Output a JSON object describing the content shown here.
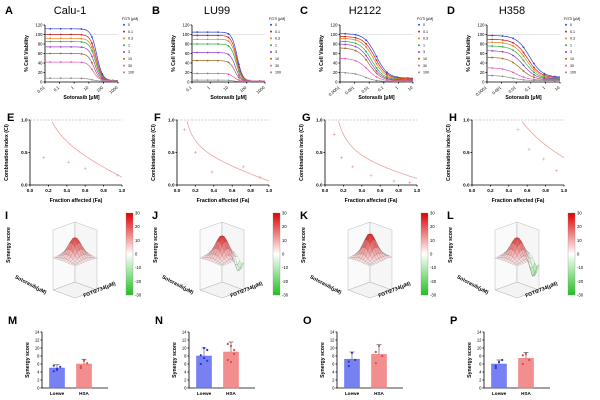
{
  "colors": {
    "series": [
      "#2b3fe0",
      "#cf1c1c",
      "#f07a1a",
      "#27b33a",
      "#9a3cc8",
      "#9c6a2c",
      "#e35bb8",
      "#8c8c8c"
    ],
    "ci_curve": "#f2a0a0",
    "ci_points": "#e8a0a0",
    "loewe_bar": "#5f6bf0",
    "hsa_bar": "#f07a7a",
    "heat_high": "#e00000",
    "heat_low": "#22c022"
  },
  "figure": {
    "letters": [
      "A",
      "B",
      "C",
      "D",
      "E",
      "F",
      "G",
      "H",
      "I",
      "J",
      "K",
      "L",
      "M",
      "N",
      "O",
      "P"
    ],
    "rowA_titles": [
      "Calu-1",
      "LU99",
      "H2122",
      "H358"
    ],
    "rowA_ylabel": "% Cell Viability",
    "rowA_xlabel": "Sotorasib [μM]",
    "legend_title": "FGTI [μM]",
    "legend_items": [
      "0",
      "0.1",
      "0.3",
      "1",
      "3",
      "10",
      "30",
      "100"
    ],
    "rowE_ylabel": "Combination index (CI)",
    "rowE_xlabel": "Fraction affected (Fa)",
    "rowI_zlabel": "Synergy score",
    "rowI_ylabel": "Sotorasib(μM)",
    "rowI_xlabel": "FGTI2734(μM)",
    "colorbar_ticks": [
      "30",
      "20",
      "10",
      "0",
      "-10",
      "-20",
      "-30"
    ],
    "rowM_ylabel": "Synergy score",
    "rowM_categories": [
      "Loewe",
      "HSA"
    ]
  },
  "chart_data": [
    {
      "panel": "A",
      "type": "line",
      "title": "Calu-1",
      "xscale": "log",
      "xlabel": "Sotorasib [μM]",
      "ylabel": "% Cell Viability",
      "xlim": [
        0.01,
        1000
      ],
      "ylim": [
        0,
        120
      ],
      "x_ticks": [
        "0.01",
        "0.1",
        "1",
        "10",
        "100",
        "1000"
      ],
      "y_ticks": [
        "0",
        "20",
        "40",
        "60",
        "80",
        "100",
        "120"
      ],
      "legend_title": "FGTI [μM]",
      "series": [
        {
          "name": "0",
          "top": 112,
          "ic50": 35,
          "hill": 2.2,
          "bottom": 3
        },
        {
          "name": "0.1",
          "top": 100,
          "ic50": 32,
          "hill": 2.2,
          "bottom": 3
        },
        {
          "name": "0.3",
          "top": 92,
          "ic50": 30,
          "hill": 2.2,
          "bottom": 3
        },
        {
          "name": "1",
          "top": 85,
          "ic50": 28,
          "hill": 2.2,
          "bottom": 3
        },
        {
          "name": "3",
          "top": 74,
          "ic50": 25,
          "hill": 2.2,
          "bottom": 3
        },
        {
          "name": "10",
          "top": 60,
          "ic50": 22,
          "hill": 2.2,
          "bottom": 3
        },
        {
          "name": "30",
          "top": 42,
          "ic50": 20,
          "hill": 2.2,
          "bottom": 3
        },
        {
          "name": "100",
          "top": 8,
          "ic50": 15,
          "hill": 2.0,
          "bottom": 2
        }
      ]
    },
    {
      "panel": "B",
      "type": "line",
      "title": "LU99",
      "xscale": "log",
      "xlabel": "Sotorasib [μM]",
      "ylabel": "% Cell Viability",
      "xlim": [
        0.1,
        1000
      ],
      "ylim": [
        0,
        120
      ],
      "x_ticks": [
        "0.1",
        "1",
        "10",
        "100",
        "1000"
      ],
      "y_ticks": [
        "0",
        "20",
        "40",
        "60",
        "80",
        "100",
        "120"
      ],
      "legend_title": "FGTI [μM]",
      "series": [
        {
          "name": "0",
          "top": 105,
          "ic50": 30,
          "hill": 3,
          "bottom": 2
        },
        {
          "name": "0.1",
          "top": 98,
          "ic50": 28,
          "hill": 3,
          "bottom": 2
        },
        {
          "name": "0.3",
          "top": 90,
          "ic50": 27,
          "hill": 3,
          "bottom": 2
        },
        {
          "name": "1",
          "top": 80,
          "ic50": 26,
          "hill": 3,
          "bottom": 2
        },
        {
          "name": "3",
          "top": 62,
          "ic50": 24,
          "hill": 3,
          "bottom": 2
        },
        {
          "name": "10",
          "top": 45,
          "ic50": 22,
          "hill": 3,
          "bottom": 2
        },
        {
          "name": "30",
          "top": 18,
          "ic50": 20,
          "hill": 3,
          "bottom": 2
        },
        {
          "name": "100",
          "top": 4,
          "ic50": 18,
          "hill": 3,
          "bottom": 1
        }
      ]
    },
    {
      "panel": "C",
      "type": "line",
      "title": "H2122",
      "xscale": "log",
      "xlabel": "Sotorasib [μM]",
      "ylabel": "% Cell Viability",
      "xlim": [
        0.0001,
        10
      ],
      "ylim": [
        0,
        120
      ],
      "x_ticks": [
        "0.0001",
        "0.001",
        "0.01",
        "0.1",
        "1",
        "10"
      ],
      "y_ticks": [
        "0",
        "20",
        "40",
        "60",
        "80",
        "100",
        "120"
      ],
      "legend_title": "FGTI [μM]",
      "series": [
        {
          "name": "0",
          "top": 102,
          "ic50": 0.03,
          "hill": 1.1,
          "bottom": 8
        },
        {
          "name": "0.1",
          "top": 96,
          "ic50": 0.025,
          "hill": 1.1,
          "bottom": 7
        },
        {
          "name": "0.3",
          "top": 92,
          "ic50": 0.02,
          "hill": 1.1,
          "bottom": 6
        },
        {
          "name": "1",
          "top": 86,
          "ic50": 0.015,
          "hill": 1.1,
          "bottom": 5
        },
        {
          "name": "3",
          "top": 80,
          "ic50": 0.012,
          "hill": 1.1,
          "bottom": 4
        },
        {
          "name": "10",
          "top": 72,
          "ic50": 0.01,
          "hill": 1.1,
          "bottom": 3
        },
        {
          "name": "30",
          "top": 50,
          "ic50": 0.008,
          "hill": 1.1,
          "bottom": 2
        },
        {
          "name": "100",
          "top": 20,
          "ic50": 0.005,
          "hill": 1.1,
          "bottom": 1
        }
      ]
    },
    {
      "panel": "D",
      "type": "line",
      "title": "H358",
      "xscale": "log",
      "xlabel": "Sotorasib [μM]",
      "ylabel": "% Cell Viability",
      "xlim": [
        0.0001,
        10
      ],
      "ylim": [
        0,
        120
      ],
      "x_ticks": [
        "0.0001",
        "0.001",
        "0.01",
        "0.1",
        "1",
        "10"
      ],
      "y_ticks": [
        "0",
        "20",
        "40",
        "60",
        "80",
        "100",
        "120"
      ],
      "legend_title": "FGTI [μM]",
      "series": [
        {
          "name": "0",
          "top": 98,
          "ic50": 0.08,
          "hill": 1.0,
          "bottom": 10
        },
        {
          "name": "0.1",
          "top": 90,
          "ic50": 0.06,
          "hill": 1.0,
          "bottom": 9
        },
        {
          "name": "0.3",
          "top": 84,
          "ic50": 0.05,
          "hill": 1.0,
          "bottom": 8
        },
        {
          "name": "1",
          "top": 76,
          "ic50": 0.04,
          "hill": 1.0,
          "bottom": 7
        },
        {
          "name": "3",
          "top": 66,
          "ic50": 0.03,
          "hill": 1.0,
          "bottom": 6
        },
        {
          "name": "10",
          "top": 52,
          "ic50": 0.02,
          "hill": 1.0,
          "bottom": 5
        },
        {
          "name": "30",
          "top": 30,
          "ic50": 0.01,
          "hill": 1.0,
          "bottom": 4
        },
        {
          "name": "100",
          "top": 14,
          "ic50": 0.005,
          "hill": 1.0,
          "bottom": 3
        }
      ]
    },
    {
      "panel": "E",
      "type": "scatter",
      "xlabel": "Fraction affected (Fa)",
      "ylabel": "Combination index (CI)",
      "xlim": [
        0,
        1.0
      ],
      "ylim": [
        0,
        1.0
      ],
      "x_ticks": [
        "0.0",
        "0.2",
        "0.4",
        "0.6",
        "0.8",
        "1.0"
      ],
      "y_ticks": [
        "0.0",
        "0.5",
        "1.0"
      ],
      "reference_line": 1.0,
      "curve": {
        "a": 0.12,
        "b": 0.62
      },
      "points": [
        [
          0.15,
          0.42
        ],
        [
          0.42,
          0.35
        ],
        [
          0.6,
          0.25
        ],
        [
          0.95,
          0.15
        ]
      ]
    },
    {
      "panel": "F",
      "type": "scatter",
      "xlabel": "Fraction affected (Fa)",
      "ylabel": "Combination index (CI)",
      "xlim": [
        0,
        1.0
      ],
      "ylim": [
        0,
        1.0
      ],
      "x_ticks": [
        "0.0",
        "0.2",
        "0.4",
        "0.6",
        "0.8",
        "1.0"
      ],
      "y_ticks": [
        "0.0",
        "0.5",
        "1.0"
      ],
      "reference_line": 1.0,
      "curve": {
        "a": 0.06,
        "b": 0.48
      },
      "points": [
        [
          0.08,
          0.85
        ],
        [
          0.2,
          0.5
        ],
        [
          0.38,
          0.2
        ],
        [
          0.72,
          0.28
        ],
        [
          0.9,
          0.12
        ]
      ]
    },
    {
      "panel": "G",
      "type": "scatter",
      "xlabel": "Fraction affected (Fa)",
      "ylabel": "Combination index (CI)",
      "xlim": [
        0,
        1.0
      ],
      "ylim": [
        0,
        1.0
      ],
      "x_ticks": [
        "0.0",
        "0.2",
        "0.4",
        "0.6",
        "0.8",
        "1.0"
      ],
      "y_ticks": [
        "0.0",
        "0.5",
        "1.0"
      ],
      "reference_line": 1.0,
      "curve": {
        "a": 0.1,
        "b": 0.35
      },
      "points": [
        [
          0.1,
          0.78
        ],
        [
          0.18,
          0.42
        ],
        [
          0.3,
          0.28
        ],
        [
          0.5,
          0.15
        ],
        [
          0.75,
          0.06
        ],
        [
          0.92,
          0.04
        ]
      ]
    },
    {
      "panel": "H",
      "type": "scatter",
      "xlabel": "Fraction affected (Fa)",
      "ylabel": "Combination index (CI)",
      "xlim": [
        0,
        1.0
      ],
      "ylim": [
        0,
        1.0
      ],
      "x_ticks": [
        "0.0",
        "0.2",
        "0.4",
        "0.6",
        "0.8",
        "1.0"
      ],
      "y_ticks": [
        "0.0",
        "0.5",
        "1.0"
      ],
      "reference_line": 1.0,
      "curve": {
        "a": 0.42,
        "b": 0.45
      },
      "points": [
        [
          0.5,
          0.85
        ],
        [
          0.62,
          0.55
        ],
        [
          0.78,
          0.4
        ],
        [
          0.92,
          0.22
        ]
      ]
    },
    {
      "panel": "I",
      "type": "heatmap",
      "zlabel": "Synergy score",
      "ylabel": "Sotorasib(μM)",
      "xlabel": "FGTI2734(μM)",
      "zlim": [
        -30,
        30
      ],
      "surface": {
        "peak": 20,
        "dip": 0
      }
    },
    {
      "panel": "J",
      "type": "heatmap",
      "zlabel": "Synergy score",
      "ylabel": "Sotorasib(μM)",
      "xlabel": "FGTI2734(μM)",
      "zlim": [
        -30,
        30
      ],
      "surface": {
        "peak": 22,
        "dip": -14
      }
    },
    {
      "panel": "K",
      "type": "heatmap",
      "zlabel": "Synergy score",
      "ylabel": "Sotorasib(μM)",
      "xlabel": "FGTI2734(μM)",
      "zlim": [
        -30,
        30
      ],
      "surface": {
        "peak": 24,
        "dip": 2
      }
    },
    {
      "panel": "L",
      "type": "heatmap",
      "zlabel": "Synergy score",
      "ylabel": "Sotorasib(μM)",
      "xlabel": "FGTI2734(μM)",
      "zlim": [
        -30,
        30
      ],
      "surface": {
        "peak": 20,
        "dip": -20
      }
    },
    {
      "panel": "M",
      "type": "bar",
      "ylabel": "Synergy score",
      "categories": [
        "Loewe",
        "HSA"
      ],
      "ylim": [
        0,
        14
      ],
      "y_ticks": [
        "0",
        "2",
        "4",
        "6",
        "8",
        "10",
        "12",
        "14"
      ],
      "values": [
        5.0,
        6.0
      ],
      "errors": [
        0.8,
        1.2
      ],
      "points": [
        [
          4.2,
          4.8,
          5.3,
          5.6,
          4.5
        ],
        [
          5.0,
          6.8,
          6.2,
          5.4,
          7.0
        ]
      ]
    },
    {
      "panel": "N",
      "type": "bar",
      "ylabel": "Synergy score",
      "categories": [
        "Loewe",
        "HSA"
      ],
      "ylim": [
        0,
        14
      ],
      "y_ticks": [
        "0",
        "2",
        "4",
        "6",
        "8",
        "10",
        "12",
        "14"
      ],
      "values": [
        8.0,
        9.0
      ],
      "errors": [
        2.0,
        2.5
      ],
      "points": [
        [
          6.0,
          7.5,
          9.5,
          8.2,
          10.0,
          6.8
        ],
        [
          7.0,
          10.5,
          8.5,
          11.0,
          6.5,
          9.5
        ]
      ]
    },
    {
      "panel": "O",
      "type": "bar",
      "ylabel": "Synergy score",
      "categories": [
        "Loewe",
        "HSA"
      ],
      "ylim": [
        0,
        14
      ],
      "y_ticks": [
        "0",
        "2",
        "4",
        "6",
        "8",
        "10",
        "12",
        "14"
      ],
      "values": [
        7.2,
        8.4
      ],
      "errors": [
        1.8,
        2.4
      ],
      "points": [
        [
          5.5,
          8.8,
          7.0,
          6.6
        ],
        [
          6.2,
          10.5,
          8.0,
          9.0
        ]
      ]
    },
    {
      "panel": "P",
      "type": "bar",
      "ylabel": "Synergy score",
      "categories": [
        "Loewe",
        "HSA"
      ],
      "ylim": [
        0,
        14
      ],
      "y_ticks": [
        "0",
        "2",
        "4",
        "6",
        "8",
        "10",
        "12",
        "14"
      ],
      "values": [
        6.0,
        7.4
      ],
      "errors": [
        1.0,
        1.5
      ],
      "points": [
        [
          5.0,
          6.5,
          7.0,
          5.5
        ],
        [
          6.0,
          8.5,
          7.0,
          8.2
        ]
      ]
    }
  ]
}
